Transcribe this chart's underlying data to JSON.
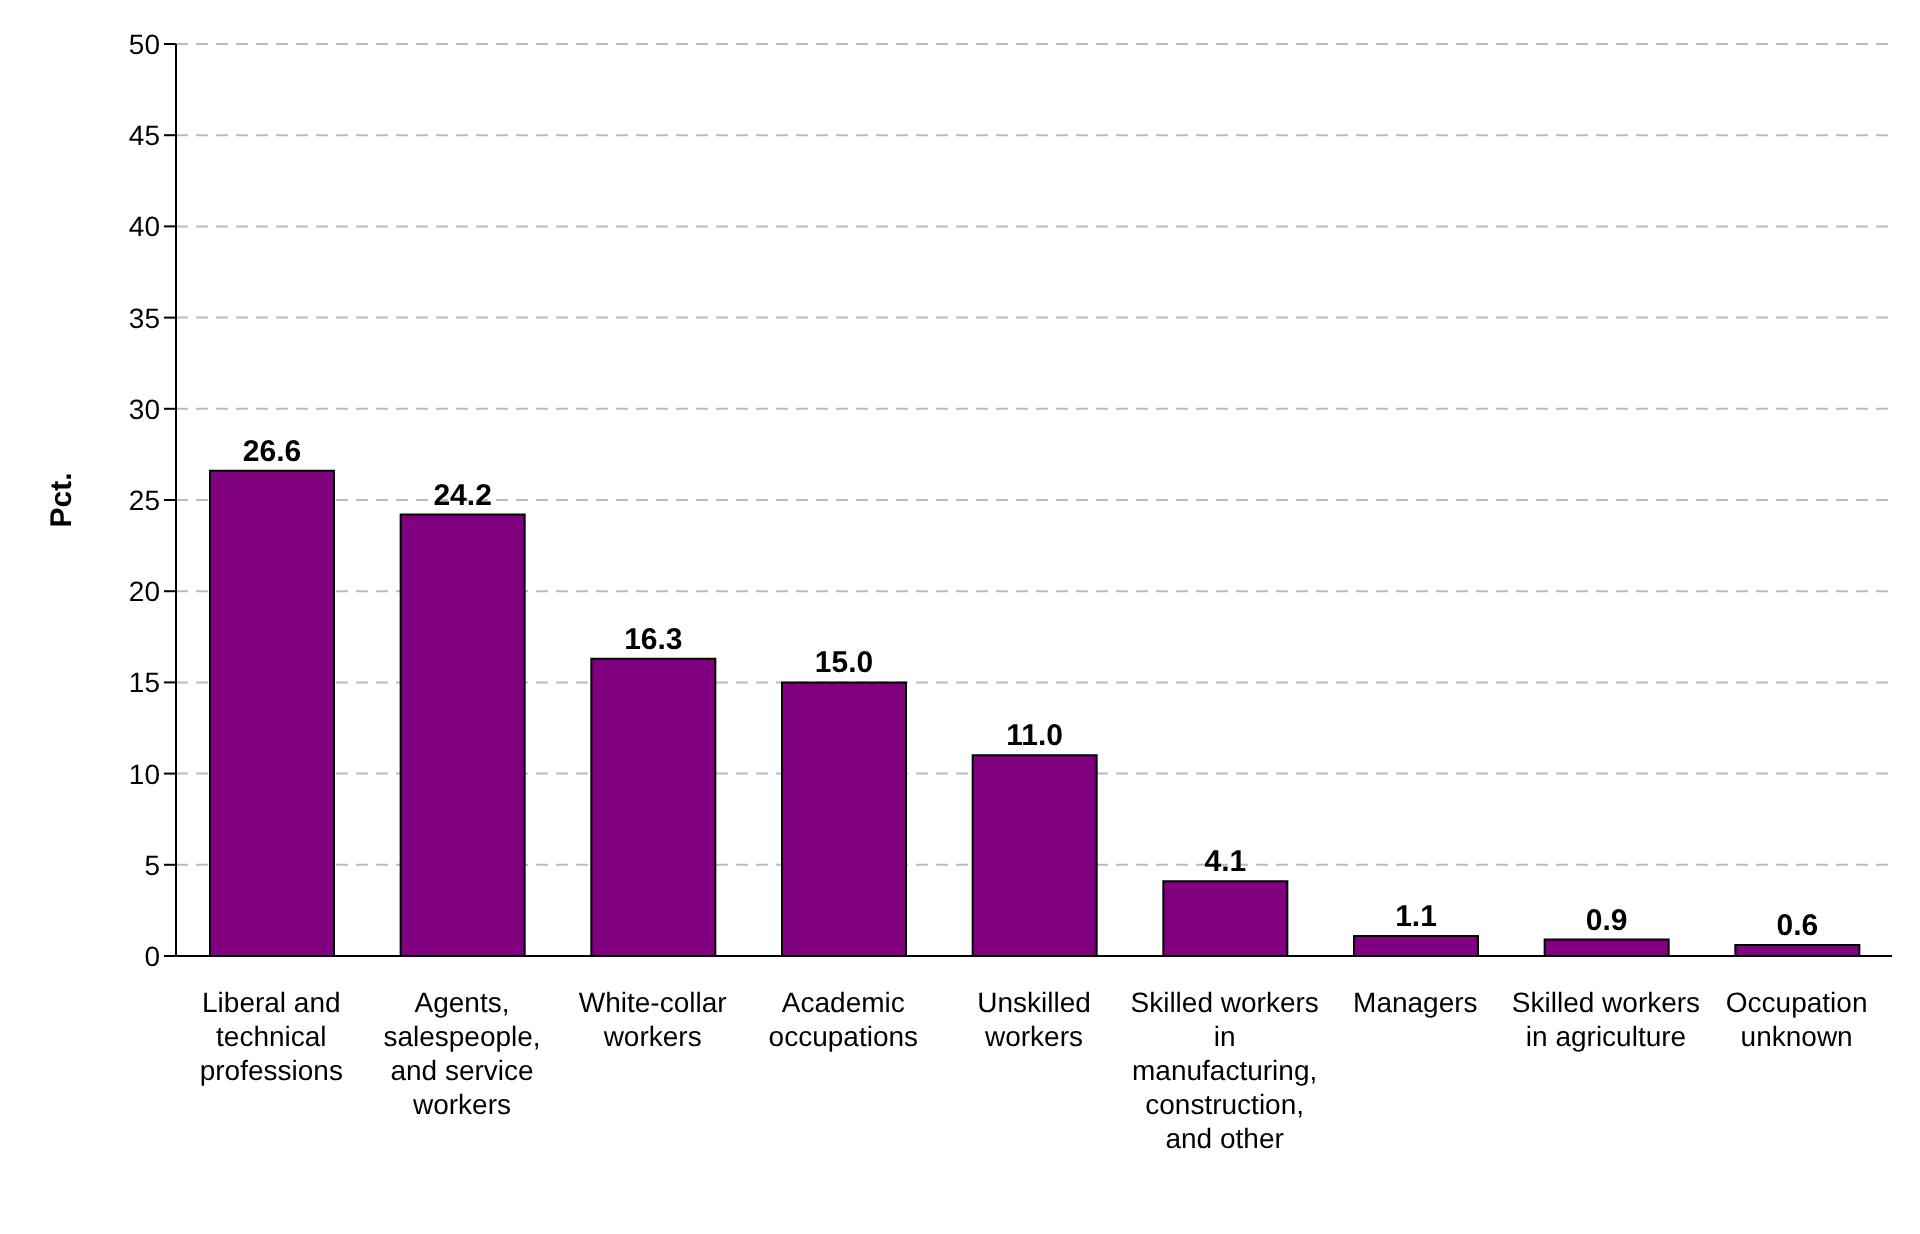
{
  "chart_data": {
    "type": "bar",
    "ylabel": "Pct.",
    "categories": [
      "Liberal and technical professions",
      "Agents, salespeople, and service workers",
      "White-collar workers",
      "Academic occupations",
      "Unskilled workers",
      "Skilled workers in manufacturing, construction, and other",
      "Managers",
      "Skilled workers in agriculture",
      "Occupation unknown"
    ],
    "values": [
      26.6,
      24.2,
      16.3,
      15.0,
      11.0,
      4.1,
      1.1,
      0.9,
      0.6
    ],
    "value_labels": [
      "26.6",
      "24.2",
      "16.3",
      "15.0",
      "11.0",
      "4.1",
      "1.1",
      "0.9",
      "0.6"
    ],
    "color": "#800080",
    "ylim": [
      0,
      50
    ],
    "yticks": [
      0,
      5,
      10,
      15,
      20,
      25,
      30,
      35,
      40,
      45,
      50
    ],
    "grid": "y"
  }
}
